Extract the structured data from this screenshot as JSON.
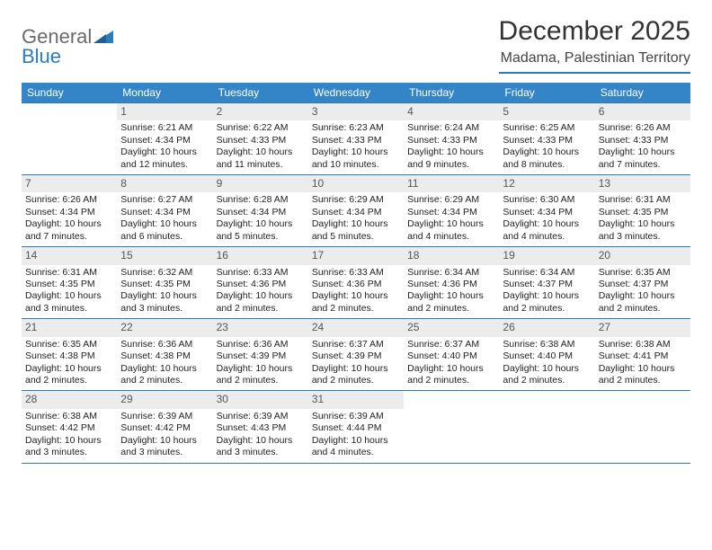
{
  "logo": {
    "text1": "General",
    "text2": "Blue"
  },
  "title": "December 2025",
  "location": "Madama, Palestinian Territory",
  "colors": {
    "header_bar": "#3485c7",
    "accent_line": "#2b7bbf",
    "daynum_bg": "#ececec",
    "text": "#222222"
  },
  "weekdays": [
    "Sunday",
    "Monday",
    "Tuesday",
    "Wednesday",
    "Thursday",
    "Friday",
    "Saturday"
  ],
  "weeks": [
    [
      {
        "n": "",
        "sr": "",
        "ss": "",
        "dl": ""
      },
      {
        "n": "1",
        "sr": "Sunrise: 6:21 AM",
        "ss": "Sunset: 4:34 PM",
        "dl": "Daylight: 10 hours and 12 minutes."
      },
      {
        "n": "2",
        "sr": "Sunrise: 6:22 AM",
        "ss": "Sunset: 4:33 PM",
        "dl": "Daylight: 10 hours and 11 minutes."
      },
      {
        "n": "3",
        "sr": "Sunrise: 6:23 AM",
        "ss": "Sunset: 4:33 PM",
        "dl": "Daylight: 10 hours and 10 minutes."
      },
      {
        "n": "4",
        "sr": "Sunrise: 6:24 AM",
        "ss": "Sunset: 4:33 PM",
        "dl": "Daylight: 10 hours and 9 minutes."
      },
      {
        "n": "5",
        "sr": "Sunrise: 6:25 AM",
        "ss": "Sunset: 4:33 PM",
        "dl": "Daylight: 10 hours and 8 minutes."
      },
      {
        "n": "6",
        "sr": "Sunrise: 6:26 AM",
        "ss": "Sunset: 4:33 PM",
        "dl": "Daylight: 10 hours and 7 minutes."
      }
    ],
    [
      {
        "n": "7",
        "sr": "Sunrise: 6:26 AM",
        "ss": "Sunset: 4:34 PM",
        "dl": "Daylight: 10 hours and 7 minutes."
      },
      {
        "n": "8",
        "sr": "Sunrise: 6:27 AM",
        "ss": "Sunset: 4:34 PM",
        "dl": "Daylight: 10 hours and 6 minutes."
      },
      {
        "n": "9",
        "sr": "Sunrise: 6:28 AM",
        "ss": "Sunset: 4:34 PM",
        "dl": "Daylight: 10 hours and 5 minutes."
      },
      {
        "n": "10",
        "sr": "Sunrise: 6:29 AM",
        "ss": "Sunset: 4:34 PM",
        "dl": "Daylight: 10 hours and 5 minutes."
      },
      {
        "n": "11",
        "sr": "Sunrise: 6:29 AM",
        "ss": "Sunset: 4:34 PM",
        "dl": "Daylight: 10 hours and 4 minutes."
      },
      {
        "n": "12",
        "sr": "Sunrise: 6:30 AM",
        "ss": "Sunset: 4:34 PM",
        "dl": "Daylight: 10 hours and 4 minutes."
      },
      {
        "n": "13",
        "sr": "Sunrise: 6:31 AM",
        "ss": "Sunset: 4:35 PM",
        "dl": "Daylight: 10 hours and 3 minutes."
      }
    ],
    [
      {
        "n": "14",
        "sr": "Sunrise: 6:31 AM",
        "ss": "Sunset: 4:35 PM",
        "dl": "Daylight: 10 hours and 3 minutes."
      },
      {
        "n": "15",
        "sr": "Sunrise: 6:32 AM",
        "ss": "Sunset: 4:35 PM",
        "dl": "Daylight: 10 hours and 3 minutes."
      },
      {
        "n": "16",
        "sr": "Sunrise: 6:33 AM",
        "ss": "Sunset: 4:36 PM",
        "dl": "Daylight: 10 hours and 2 minutes."
      },
      {
        "n": "17",
        "sr": "Sunrise: 6:33 AM",
        "ss": "Sunset: 4:36 PM",
        "dl": "Daylight: 10 hours and 2 minutes."
      },
      {
        "n": "18",
        "sr": "Sunrise: 6:34 AM",
        "ss": "Sunset: 4:36 PM",
        "dl": "Daylight: 10 hours and 2 minutes."
      },
      {
        "n": "19",
        "sr": "Sunrise: 6:34 AM",
        "ss": "Sunset: 4:37 PM",
        "dl": "Daylight: 10 hours and 2 minutes."
      },
      {
        "n": "20",
        "sr": "Sunrise: 6:35 AM",
        "ss": "Sunset: 4:37 PM",
        "dl": "Daylight: 10 hours and 2 minutes."
      }
    ],
    [
      {
        "n": "21",
        "sr": "Sunrise: 6:35 AM",
        "ss": "Sunset: 4:38 PM",
        "dl": "Daylight: 10 hours and 2 minutes."
      },
      {
        "n": "22",
        "sr": "Sunrise: 6:36 AM",
        "ss": "Sunset: 4:38 PM",
        "dl": "Daylight: 10 hours and 2 minutes."
      },
      {
        "n": "23",
        "sr": "Sunrise: 6:36 AM",
        "ss": "Sunset: 4:39 PM",
        "dl": "Daylight: 10 hours and 2 minutes."
      },
      {
        "n": "24",
        "sr": "Sunrise: 6:37 AM",
        "ss": "Sunset: 4:39 PM",
        "dl": "Daylight: 10 hours and 2 minutes."
      },
      {
        "n": "25",
        "sr": "Sunrise: 6:37 AM",
        "ss": "Sunset: 4:40 PM",
        "dl": "Daylight: 10 hours and 2 minutes."
      },
      {
        "n": "26",
        "sr": "Sunrise: 6:38 AM",
        "ss": "Sunset: 4:40 PM",
        "dl": "Daylight: 10 hours and 2 minutes."
      },
      {
        "n": "27",
        "sr": "Sunrise: 6:38 AM",
        "ss": "Sunset: 4:41 PM",
        "dl": "Daylight: 10 hours and 2 minutes."
      }
    ],
    [
      {
        "n": "28",
        "sr": "Sunrise: 6:38 AM",
        "ss": "Sunset: 4:42 PM",
        "dl": "Daylight: 10 hours and 3 minutes."
      },
      {
        "n": "29",
        "sr": "Sunrise: 6:39 AM",
        "ss": "Sunset: 4:42 PM",
        "dl": "Daylight: 10 hours and 3 minutes."
      },
      {
        "n": "30",
        "sr": "Sunrise: 6:39 AM",
        "ss": "Sunset: 4:43 PM",
        "dl": "Daylight: 10 hours and 3 minutes."
      },
      {
        "n": "31",
        "sr": "Sunrise: 6:39 AM",
        "ss": "Sunset: 4:44 PM",
        "dl": "Daylight: 10 hours and 4 minutes."
      },
      {
        "n": "",
        "sr": "",
        "ss": "",
        "dl": ""
      },
      {
        "n": "",
        "sr": "",
        "ss": "",
        "dl": ""
      },
      {
        "n": "",
        "sr": "",
        "ss": "",
        "dl": ""
      }
    ]
  ]
}
